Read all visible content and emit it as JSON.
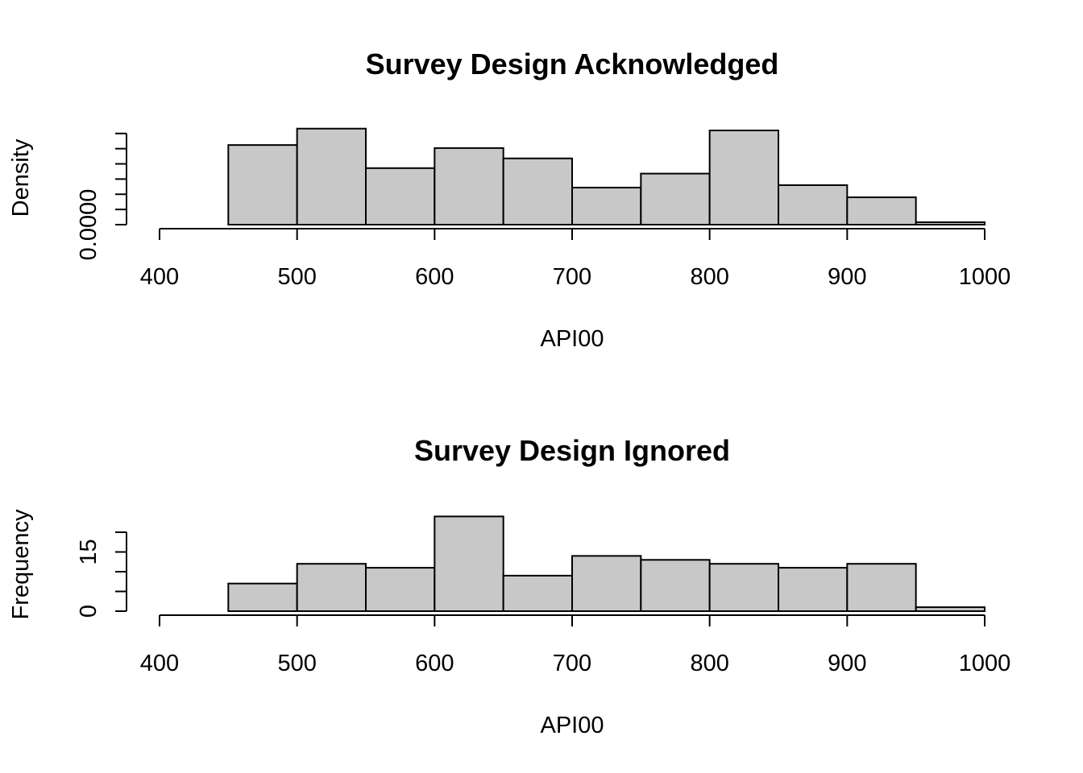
{
  "chart_data": [
    {
      "type": "bar",
      "title": "Survey Design Acknowledged",
      "xlabel": "API00",
      "ylabel": "Density",
      "bin_edges": [
        450,
        500,
        550,
        600,
        650,
        700,
        750,
        800,
        850,
        900,
        950,
        1000
      ],
      "values": [
        0.00262,
        0.00316,
        0.00186,
        0.00252,
        0.00218,
        0.00122,
        0.00168,
        0.0031,
        0.0013,
        0.0009,
        8e-05
      ],
      "xlim": [
        400,
        1000
      ],
      "ylim": [
        0,
        0.0031
      ],
      "x_ticks": [
        400,
        500,
        600,
        700,
        800,
        900,
        1000
      ],
      "x_tick_labels": [
        "400",
        "500",
        "600",
        "700",
        "800",
        "900",
        "1000"
      ],
      "y_ticks": [
        0,
        0.0005,
        0.001,
        0.0015,
        0.002,
        0.0025,
        0.003
      ],
      "y_tick_labels": [
        "0.0000",
        "",
        "",
        "",
        "",
        "",
        ""
      ],
      "bar_color": "#c8c8c8",
      "grid": false,
      "legend": "none"
    },
    {
      "type": "bar",
      "title": "Survey Design Ignored",
      "xlabel": "API00",
      "ylabel": "Frequency",
      "bin_edges": [
        450,
        500,
        550,
        600,
        650,
        700,
        750,
        800,
        850,
        900,
        950,
        1000
      ],
      "values": [
        7,
        12,
        11,
        24,
        9,
        14,
        13,
        12,
        11,
        12,
        1
      ],
      "xlim": [
        400,
        1000
      ],
      "ylim": [
        0,
        20
      ],
      "x_ticks": [
        400,
        500,
        600,
        700,
        800,
        900,
        1000
      ],
      "x_tick_labels": [
        "400",
        "500",
        "600",
        "700",
        "800",
        "900",
        "1000"
      ],
      "y_ticks": [
        0,
        5,
        10,
        15,
        20
      ],
      "y_tick_labels": [
        "0",
        "",
        "",
        "15",
        ""
      ],
      "bar_color": "#c8c8c8",
      "grid": false,
      "legend": "none"
    }
  ]
}
